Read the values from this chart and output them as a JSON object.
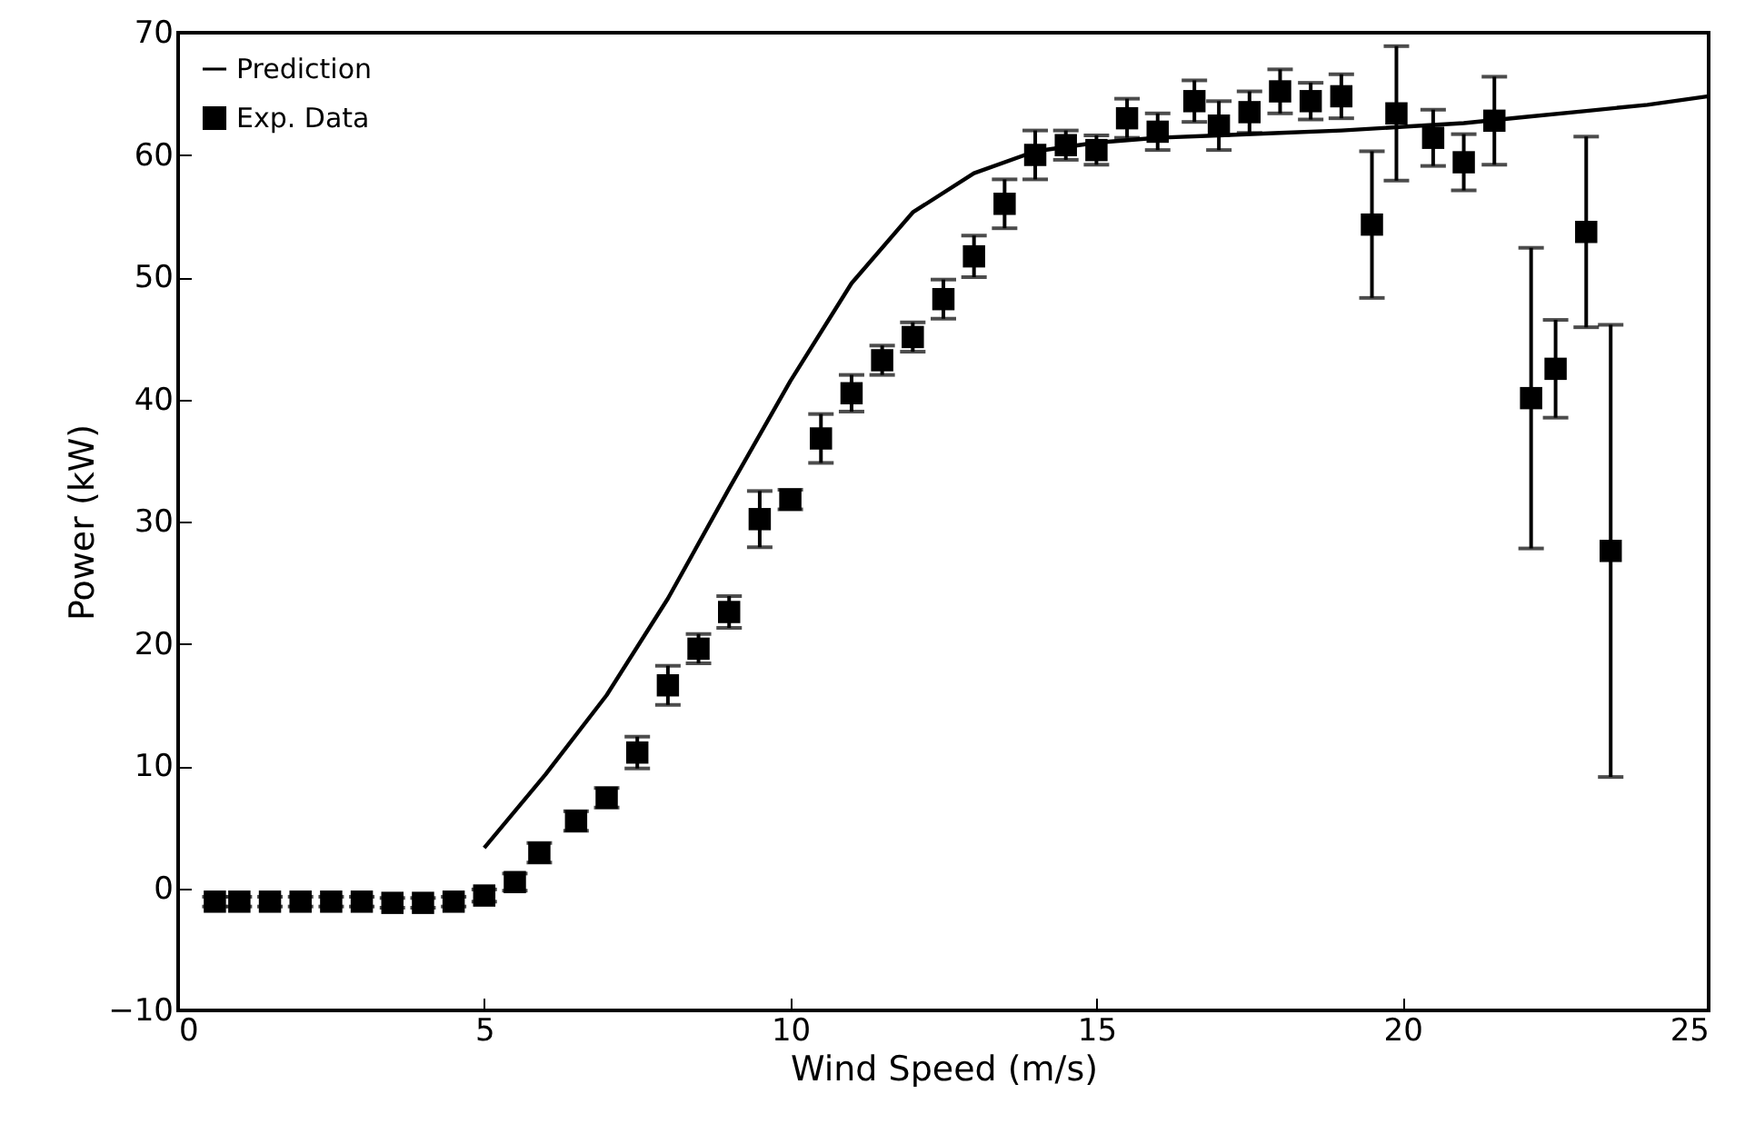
{
  "chart_data": {
    "type": "scatter",
    "xlabel": "Wind Speed (m/s)",
    "ylabel": "Power (kW)",
    "xlim": [
      0,
      25
    ],
    "xticks": [
      0,
      5,
      10,
      15,
      20,
      25
    ],
    "ylim": [
      -10,
      70
    ],
    "yticks": [
      {
        "value": -10,
        "label": "−10"
      },
      0,
      10,
      20,
      30,
      40,
      50,
      60,
      70
    ],
    "grid": false,
    "legend": "top left",
    "series": [
      {
        "name": "Prediction",
        "type": "line",
        "color": "#000000",
        "marker": "none",
        "line_style": "solid",
        "x": [
          5,
          6,
          7,
          8,
          9,
          10,
          11,
          12,
          13,
          14,
          15,
          16,
          17,
          18,
          19,
          20,
          21,
          22,
          23,
          24,
          25
        ],
        "values": [
          3.3,
          9.3,
          15.8,
          23.7,
          32.7,
          41.5,
          49.5,
          55.3,
          58.5,
          60.3,
          61.0,
          61.4,
          61.6,
          61.8,
          62.0,
          62.3,
          62.6,
          63.1,
          63.6,
          64.1,
          64.8
        ]
      },
      {
        "name": "Exp. Data",
        "color": "#000000",
        "marker": "square",
        "x": [
          0.6,
          1.0,
          1.5,
          2.0,
          2.5,
          3.0,
          3.5,
          4.0,
          4.5,
          5.0,
          5.5,
          5.9,
          6.5,
          7.0,
          7.5,
          8.0,
          8.5,
          9.0,
          9.5,
          10.0,
          10.5,
          11.0,
          11.5,
          12.0,
          12.5,
          13.0,
          13.5,
          14.0,
          14.5,
          15.0,
          15.5,
          16.0,
          16.6,
          17.0,
          17.5,
          18.0,
          18.5,
          19.0,
          19.5,
          19.9,
          20.5,
          21.0,
          21.5,
          22.1,
          22.5,
          23.0,
          23.4
        ],
        "values": [
          -1.1,
          -1.1,
          -1.1,
          -1.1,
          -1.1,
          -1.1,
          -1.2,
          -1.2,
          -1.1,
          -0.6,
          0.5,
          2.9,
          5.5,
          7.4,
          11.1,
          16.6,
          19.6,
          22.6,
          30.2,
          31.8,
          36.8,
          40.5,
          43.2,
          45.1,
          48.2,
          51.7,
          56.0,
          60.0,
          60.8,
          60.4,
          63.0,
          61.9,
          64.4,
          62.4,
          63.5,
          65.2,
          64.4,
          64.8,
          54.3,
          63.4,
          61.4,
          59.4,
          62.8,
          40.1,
          42.5,
          53.7,
          27.6
        ],
        "errors": [
          0.4,
          0.4,
          0.4,
          0.4,
          0.4,
          0.4,
          0.4,
          0.4,
          0.4,
          0.5,
          0.7,
          0.8,
          0.8,
          0.8,
          1.3,
          1.6,
          1.2,
          1.3,
          2.3,
          0.8,
          2.0,
          1.5,
          1.2,
          1.2,
          1.6,
          1.7,
          2.0,
          2.0,
          1.2,
          1.2,
          1.6,
          1.5,
          1.7,
          2.0,
          1.7,
          1.8,
          1.5,
          1.8,
          6.0,
          5.5,
          2.3,
          2.3,
          3.6,
          12.3,
          4.0,
          7.8,
          18.5
        ]
      }
    ]
  }
}
